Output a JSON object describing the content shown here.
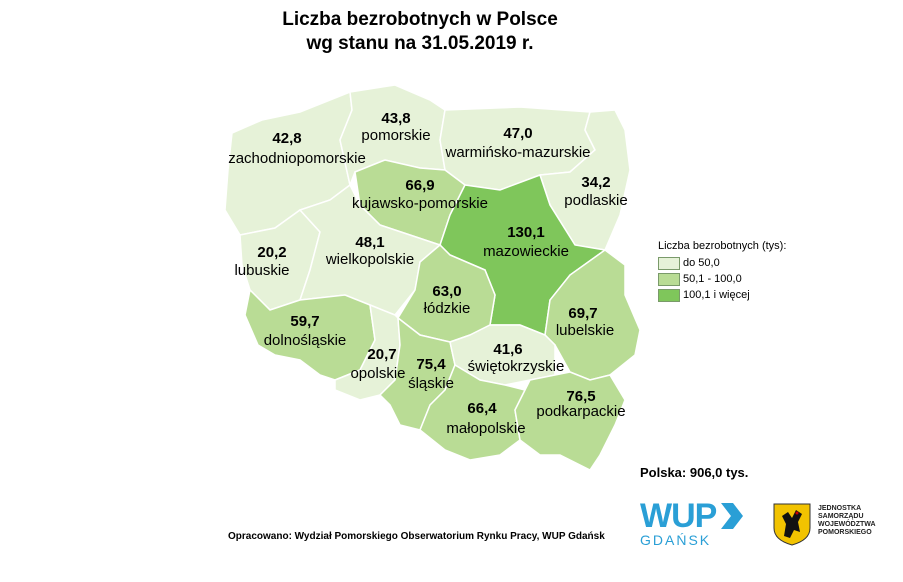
{
  "title": {
    "line1": "Liczba bezrobotnych w Polsce",
    "line2": "wg stanu na 31.05.2019 r."
  },
  "colors": {
    "low": "#e6f2d8",
    "mid": "#b9dc95",
    "high": "#7fc65b",
    "border": "#ffffff",
    "outline": "#9ab88a",
    "wup_blue": "#2a9fd6"
  },
  "regions": [
    {
      "name": "zachodniopomorskie",
      "value": "42,8",
      "level": "low"
    },
    {
      "name": "pomorskie",
      "value": "43,8",
      "level": "low"
    },
    {
      "name": "warmińsko-mazurskie",
      "value": "47,0",
      "level": "low"
    },
    {
      "name": "podlaskie",
      "value": "34,2",
      "level": "low"
    },
    {
      "name": "kujawsko-pomorskie",
      "value": "66,9",
      "level": "mid"
    },
    {
      "name": "mazowieckie",
      "value": "130,1",
      "level": "high"
    },
    {
      "name": "lubuskie",
      "value": "20,2",
      "level": "low"
    },
    {
      "name": "wielkopolskie",
      "value": "48,1",
      "level": "low"
    },
    {
      "name": "łódzkie",
      "value": "63,0",
      "level": "mid"
    },
    {
      "name": "lubelskie",
      "value": "69,7",
      "level": "mid"
    },
    {
      "name": "dolnośląskie",
      "value": "59,7",
      "level": "mid"
    },
    {
      "name": "opolskie",
      "value": "20,7",
      "level": "low"
    },
    {
      "name": "śląskie",
      "value": "75,4",
      "level": "mid"
    },
    {
      "name": "świętokrzyskie",
      "value": "41,6",
      "level": "low"
    },
    {
      "name": "małopolskie",
      "value": "66,4",
      "level": "mid"
    },
    {
      "name": "podkarpackie",
      "value": "76,5",
      "level": "mid"
    }
  ],
  "legend": {
    "title": "Liczba bezrobotnych (tys):",
    "items": [
      {
        "label": "do 50,0",
        "level": "low"
      },
      {
        "label": "50,1 - 100,0",
        "level": "mid"
      },
      {
        "label": "100,1 i więcej",
        "level": "high"
      }
    ]
  },
  "total": "Polska: 906,0 tys.",
  "credit": "Opracowano: Wydział Pomorskiego Obserwatorium Rynku Pracy, WUP Gdańsk",
  "logo": {
    "wup": "WUP",
    "city": "GDAŃSK",
    "crest_text": [
      "JEDNOSTKA",
      "SAMORZĄDU",
      "WOJEWÓDZTWA",
      "POMORSKIEGO"
    ]
  }
}
